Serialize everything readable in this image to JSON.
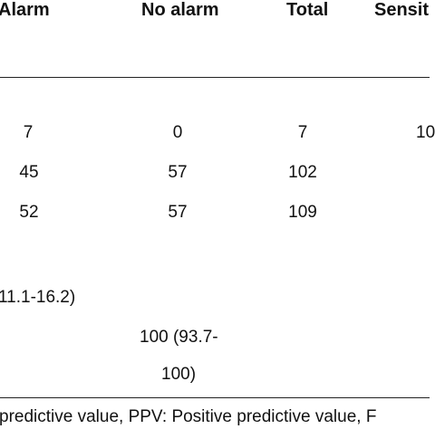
{
  "header": {
    "col1": "Alarm",
    "col2": "No alarm",
    "col3": "Total",
    "col4": "Sensit"
  },
  "rows": [
    {
      "alarm": "7",
      "no_alarm": "0",
      "total": "7",
      "sens": "10"
    },
    {
      "alarm": "45",
      "no_alarm": "57",
      "total": "102"
    },
    {
      "alarm": "52",
      "no_alarm": "57",
      "total": "109"
    }
  ],
  "ci_left": "11.1-16.2)",
  "ci_mid_line1": "100 (93.7-",
  "ci_mid_line2": "100)",
  "footnote": "predictive value, PPV: Positive predictive value, F"
}
